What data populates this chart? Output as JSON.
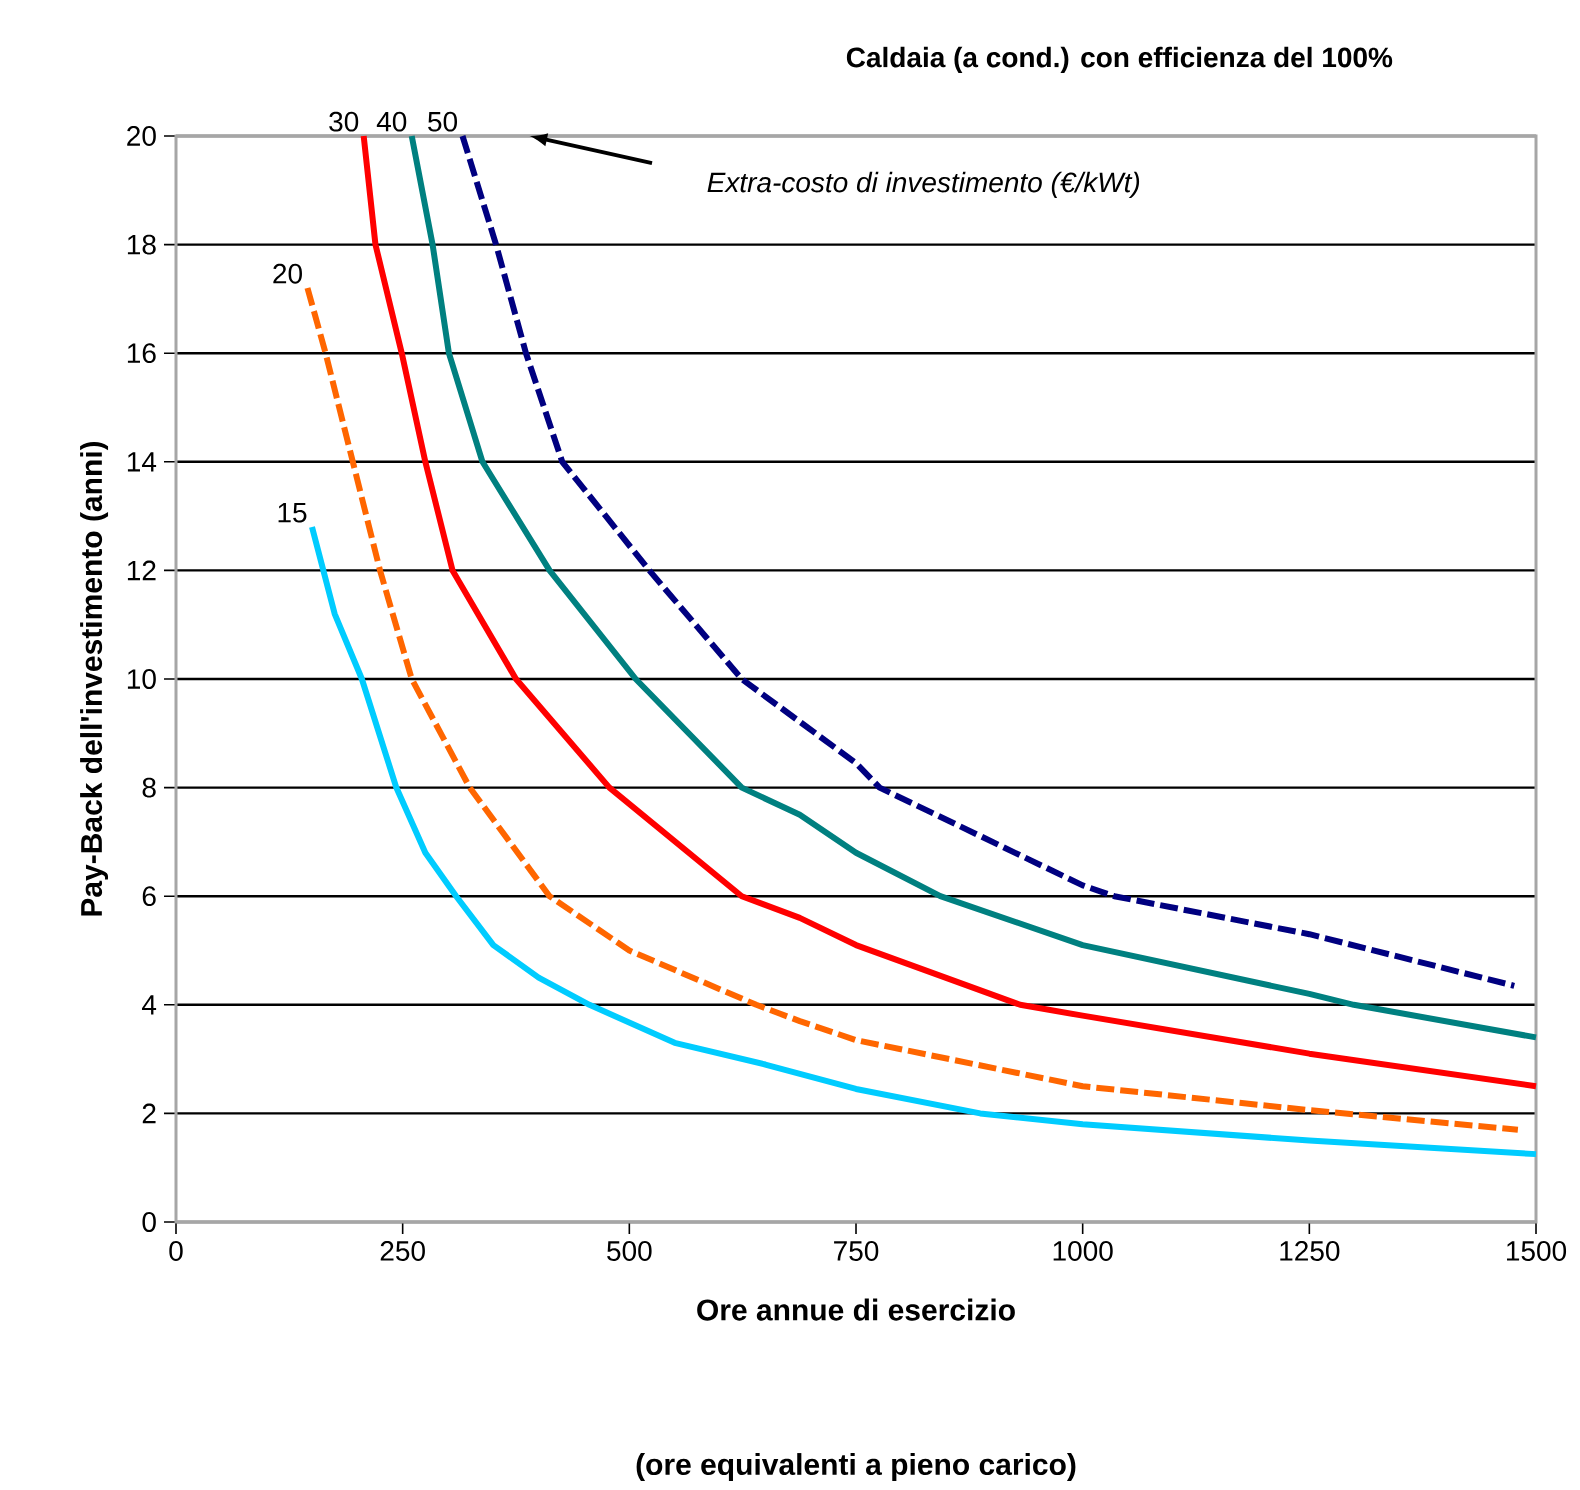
{
  "chart_data": {
    "type": "line",
    "title": "Caldaia (a cond.) con efficienza del 100%",
    "xlabel": "Ore annue di esercizio",
    "ylabel": "Pay-Back dell'investimento (anni)",
    "annotations": [
      "*Extra-costo di investimento (€/kWt)*",
      "(ore equivalenti a pieno carico)"
    ],
    "xlim": [
      0,
      1500
    ],
    "ylim": [
      0,
      20
    ],
    "xticks": [
      0,
      250,
      500,
      750,
      1000,
      1250,
      1500
    ],
    "yticks": [
      0,
      2,
      4,
      6,
      8,
      10,
      12,
      14,
      16,
      18,
      20
    ],
    "grid": "y",
    "marker": "none",
    "series": [
      {
        "name": "15",
        "color": "#00ccff",
        "line_style": "solid",
        "x": [
          150,
          175,
          205,
          243,
          275,
          309,
          350,
          400,
          456,
          550,
          650,
          750,
          887,
          1000,
          1250,
          1500
        ],
        "values": [
          12.8,
          11.2,
          10,
          8,
          6.8,
          6,
          5.1,
          4.5,
          4,
          3.3,
          2.9,
          2.45,
          2,
          1.8,
          1.5,
          1.25
        ]
      },
      {
        "name": "20",
        "color": "#ff6600",
        "line_style": "dashed",
        "x": [
          145,
          165,
          195,
          225,
          260,
          324,
          412,
          500,
          640,
          688,
          750,
          1000,
          1250,
          1480
        ],
        "values": [
          17.2,
          16,
          14,
          12,
          10,
          8,
          6,
          5,
          4,
          3.7,
          3.35,
          2.5,
          2.06,
          1.7
        ]
      },
      {
        "name": "30",
        "color": "#ff0000",
        "line_style": "solid",
        "x": [
          207,
          220,
          249,
          275,
          305,
          375,
          478,
          624,
          688,
          750,
          931,
          1000,
          1250,
          1500
        ],
        "values": [
          20,
          18,
          16,
          14,
          12,
          10,
          8,
          6,
          5.6,
          5.1,
          4,
          3.8,
          3.1,
          2.5
        ]
      },
      {
        "name": "40",
        "color": "#008080",
        "line_style": "solid",
        "x": [
          260,
          283,
          301,
          338,
          412,
          507,
          624,
          688,
          750,
          843,
          1000,
          1250,
          1299,
          1500
        ],
        "values": [
          20,
          18,
          16,
          14,
          12,
          10,
          8,
          7.5,
          6.8,
          6,
          5.1,
          4.2,
          4,
          3.4
        ]
      },
      {
        "name": "50",
        "color": "#000080",
        "line_style": "dashed",
        "x": [
          316,
          353,
          386,
          426,
          522,
          624,
          750,
          776,
          1000,
          1035,
          1250,
          1476
        ],
        "values": [
          20,
          18,
          16,
          14,
          12,
          10,
          8.45,
          8,
          6.2,
          6,
          5.3,
          4.35
        ]
      }
    ]
  }
}
